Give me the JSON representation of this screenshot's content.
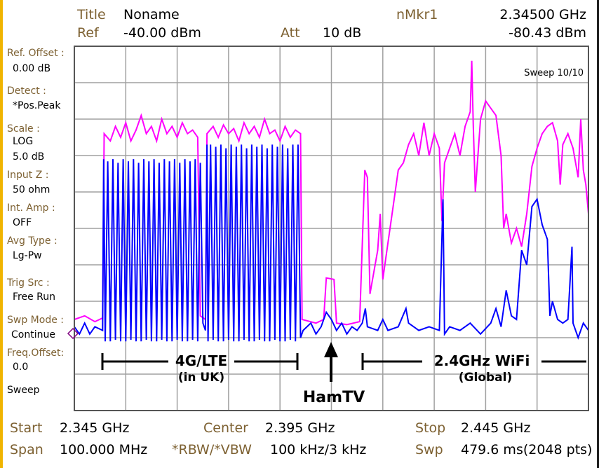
{
  "header": {
    "title_label": "Title",
    "title_value": "Noname",
    "ref_label": "Ref",
    "ref_value": "-40.00 dBm",
    "att_label": "Att",
    "att_value": "10 dB",
    "marker_label": "nMkr1",
    "marker_freq": "2.34500 GHz",
    "marker_level": "-80.43 dBm"
  },
  "side_panel": [
    {
      "label": "Ref. Offset :",
      "value": "0.00 dB"
    },
    {
      "label": "Detect :",
      "value": "*Pos.Peak"
    },
    {
      "label": "Scale :",
      "value": "LOG",
      "value2": "5.0 dB"
    },
    {
      "label": "Input Z :",
      "value": "50 ohm"
    },
    {
      "label": "Int. Amp :",
      "value": "OFF"
    },
    {
      "label": "Avg Type :",
      "value": "Lg-Pw"
    },
    {
      "label": "Trig Src :",
      "value": "Free Run"
    },
    {
      "label": "Swp Mode :",
      "value": "Continue"
    },
    {
      "label": "Freq.Offset:",
      "value": "0.0"
    },
    {
      "label": "Sweep"
    }
  ],
  "sweep_status": "Sweep 10/10",
  "footer": {
    "start_label": "Start",
    "start_value": "2.345 GHz",
    "center_label": "Center",
    "center_value": "2.395 GHz",
    "stop_label": "Stop",
    "stop_value": "2.445 GHz",
    "span_label": "Span",
    "span_value": "100.000 MHz",
    "rbw_label": "*RBW/*VBW",
    "rbw_value": "100 kHz/3 kHz",
    "swp_label": "Swp",
    "swp_value": "479.6 ms(2048 pts)"
  },
  "annotations": {
    "lte_line1": "4G/LTE",
    "lte_line2": "(in UK)",
    "hamtv": "HamTV",
    "wifi_line1": "2.4GHz WiFi",
    "wifi_line2": "(Global)"
  },
  "colors": {
    "label": "#7d6132",
    "max_hold_trace": "#ff00ff",
    "live_trace": "#0000ff",
    "grid": "#a0a0a0",
    "marker": "#800080"
  },
  "chart_data": {
    "type": "line",
    "xlim": [
      2.345,
      2.445
    ],
    "x_unit": "GHz",
    "ylim": [
      -90,
      -40
    ],
    "y_unit": "dBm",
    "scale_per_div_db": 5,
    "grid": true,
    "series": [
      {
        "color": "#ff00ff",
        "points": [
          [
            2.345,
            -77.5
          ],
          [
            2.347,
            -77
          ],
          [
            2.349,
            -77.8
          ],
          [
            2.3505,
            -77.3
          ],
          [
            2.3508,
            -52
          ],
          [
            2.352,
            -53
          ],
          [
            2.353,
            -51
          ],
          [
            2.354,
            -52.5
          ],
          [
            2.355,
            -50.5
          ],
          [
            2.356,
            -53
          ],
          [
            2.357,
            -51.5
          ],
          [
            2.358,
            -49.5
          ],
          [
            2.359,
            -52
          ],
          [
            2.36,
            -51
          ],
          [
            2.361,
            -53
          ],
          [
            2.362,
            -50
          ],
          [
            2.363,
            -52
          ],
          [
            2.364,
            -51
          ],
          [
            2.365,
            -52.5
          ],
          [
            2.366,
            -50.5
          ],
          [
            2.367,
            -52
          ],
          [
            2.368,
            -51.5
          ],
          [
            2.369,
            -52.5
          ],
          [
            2.3695,
            -77
          ],
          [
            2.3705,
            -77.5
          ],
          [
            2.3708,
            -52
          ],
          [
            2.372,
            -51
          ],
          [
            2.373,
            -52.5
          ],
          [
            2.374,
            -50.8
          ],
          [
            2.375,
            -52
          ],
          [
            2.376,
            -51.3
          ],
          [
            2.377,
            -53
          ],
          [
            2.378,
            -50.5
          ],
          [
            2.379,
            -52
          ],
          [
            2.38,
            -51
          ],
          [
            2.381,
            -52.5
          ],
          [
            2.382,
            -50
          ],
          [
            2.383,
            -52
          ],
          [
            2.384,
            -51.5
          ],
          [
            2.385,
            -53
          ],
          [
            2.386,
            -51
          ],
          [
            2.387,
            -52.5
          ],
          [
            2.388,
            -51.5
          ],
          [
            2.389,
            -52
          ],
          [
            2.3893,
            -77.5
          ],
          [
            2.392,
            -78
          ],
          [
            2.3935,
            -77.5
          ],
          [
            2.394,
            -71.8
          ],
          [
            2.3955,
            -72
          ],
          [
            2.396,
            -78
          ],
          [
            2.398,
            -78.2
          ],
          [
            2.4005,
            -77.8
          ],
          [
            2.4015,
            -57
          ],
          [
            2.402,
            -58
          ],
          [
            2.4025,
            -74
          ],
          [
            2.404,
            -68
          ],
          [
            2.4045,
            -63
          ],
          [
            2.405,
            -72
          ],
          [
            2.406,
            -67
          ],
          [
            2.407,
            -62
          ],
          [
            2.408,
            -57
          ],
          [
            2.409,
            -56
          ],
          [
            2.41,
            -53.5
          ],
          [
            2.411,
            -52
          ],
          [
            2.412,
            -55
          ],
          [
            2.413,
            -50.5
          ],
          [
            2.414,
            -55
          ],
          [
            2.415,
            -52
          ],
          [
            2.416,
            -54
          ],
          [
            2.4165,
            -64
          ],
          [
            2.417,
            -56
          ],
          [
            2.418,
            -54
          ],
          [
            2.419,
            -52
          ],
          [
            2.42,
            -55
          ],
          [
            2.421,
            -51
          ],
          [
            2.422,
            -49
          ],
          [
            2.4223,
            -42
          ],
          [
            2.4226,
            -51
          ],
          [
            2.423,
            -60
          ],
          [
            2.424,
            -50
          ],
          [
            2.425,
            -47.5
          ],
          [
            2.426,
            -48.5
          ],
          [
            2.427,
            -49.5
          ],
          [
            2.428,
            -55
          ],
          [
            2.4285,
            -65
          ],
          [
            2.429,
            -63
          ],
          [
            2.43,
            -67
          ],
          [
            2.431,
            -65
          ],
          [
            2.432,
            -67.5
          ],
          [
            2.433,
            -63
          ],
          [
            2.434,
            -56.5
          ],
          [
            2.435,
            -54
          ],
          [
            2.436,
            -52
          ],
          [
            2.437,
            -51
          ],
          [
            2.438,
            -50.5
          ],
          [
            2.439,
            -53
          ],
          [
            2.4395,
            -59
          ],
          [
            2.44,
            -53.5
          ],
          [
            2.441,
            -52
          ],
          [
            2.442,
            -54
          ],
          [
            2.443,
            -58
          ],
          [
            2.4435,
            -50
          ],
          [
            2.444,
            -57
          ],
          [
            2.4445,
            -59
          ],
          [
            2.445,
            -63
          ]
        ]
      },
      {
        "color": "#0000ff",
        "points": [
          [
            2.345,
            -78.5
          ],
          [
            2.346,
            -79.5
          ],
          [
            2.347,
            -78
          ],
          [
            2.348,
            -79.5
          ],
          [
            2.349,
            -78.5
          ],
          [
            2.3505,
            -79
          ],
          [
            2.3507,
            -55.5
          ],
          [
            2.351,
            -80.5
          ],
          [
            2.3515,
            -55.8
          ],
          [
            2.352,
            -80.5
          ],
          [
            2.3525,
            -55.5
          ],
          [
            2.353,
            -80.3
          ],
          [
            2.3535,
            -56
          ],
          [
            2.354,
            -80.5
          ],
          [
            2.3545,
            -55.5
          ],
          [
            2.355,
            -80.5
          ],
          [
            2.3555,
            -55.8
          ],
          [
            2.356,
            -80.3
          ],
          [
            2.3565,
            -55.5
          ],
          [
            2.357,
            -80.5
          ],
          [
            2.3575,
            -56
          ],
          [
            2.358,
            -80.5
          ],
          [
            2.3585,
            -55.5
          ],
          [
            2.359,
            -80.3
          ],
          [
            2.3595,
            -55.8
          ],
          [
            2.36,
            -80.5
          ],
          [
            2.3605,
            -55.5
          ],
          [
            2.361,
            -80.5
          ],
          [
            2.3615,
            -56
          ],
          [
            2.362,
            -80.3
          ],
          [
            2.3625,
            -55.5
          ],
          [
            2.363,
            -80.5
          ],
          [
            2.3635,
            -55.8
          ],
          [
            2.364,
            -80.5
          ],
          [
            2.3645,
            -55.5
          ],
          [
            2.365,
            -80.3
          ],
          [
            2.3655,
            -56
          ],
          [
            2.366,
            -80.5
          ],
          [
            2.3665,
            -55.5
          ],
          [
            2.367,
            -80.5
          ],
          [
            2.3675,
            -55.8
          ],
          [
            2.368,
            -80.3
          ],
          [
            2.3685,
            -55.5
          ],
          [
            2.369,
            -80.5
          ],
          [
            2.3695,
            -56
          ],
          [
            2.37,
            -78
          ],
          [
            2.3705,
            -79
          ],
          [
            2.3708,
            -53.5
          ],
          [
            2.371,
            -80.5
          ],
          [
            2.3715,
            -53.5
          ],
          [
            2.372,
            -80.3
          ],
          [
            2.3725,
            -53.8
          ],
          [
            2.373,
            -80.5
          ],
          [
            2.3735,
            -53.5
          ],
          [
            2.374,
            -80.5
          ],
          [
            2.3745,
            -54
          ],
          [
            2.375,
            -80.3
          ],
          [
            2.3755,
            -53.5
          ],
          [
            2.376,
            -80.5
          ],
          [
            2.3765,
            -53.8
          ],
          [
            2.377,
            -80.5
          ],
          [
            2.3775,
            -53.5
          ],
          [
            2.378,
            -80.3
          ],
          [
            2.3785,
            -54
          ],
          [
            2.379,
            -80.5
          ],
          [
            2.3795,
            -53.5
          ],
          [
            2.38,
            -80.5
          ],
          [
            2.3805,
            -53.8
          ],
          [
            2.381,
            -80.3
          ],
          [
            2.3815,
            -53.5
          ],
          [
            2.382,
            -80.5
          ],
          [
            2.3825,
            -54
          ],
          [
            2.383,
            -80.5
          ],
          [
            2.3835,
            -53.5
          ],
          [
            2.384,
            -80.3
          ],
          [
            2.3845,
            -53.8
          ],
          [
            2.385,
            -80.5
          ],
          [
            2.3855,
            -53.5
          ],
          [
            2.386,
            -80.5
          ],
          [
            2.3865,
            -54
          ],
          [
            2.387,
            -80.3
          ],
          [
            2.3875,
            -53.5
          ],
          [
            2.388,
            -80.5
          ],
          [
            2.3885,
            -53.5
          ],
          [
            2.389,
            -80
          ],
          [
            2.3895,
            -79
          ],
          [
            2.391,
            -78
          ],
          [
            2.392,
            -79.5
          ],
          [
            2.393,
            -78.5
          ],
          [
            2.394,
            -76.5
          ],
          [
            2.395,
            -77.5
          ],
          [
            2.396,
            -79
          ],
          [
            2.397,
            -78
          ],
          [
            2.398,
            -79.5
          ],
          [
            2.399,
            -78.5
          ],
          [
            2.4,
            -79
          ],
          [
            2.401,
            -78
          ],
          [
            2.4016,
            -76
          ],
          [
            2.402,
            -78.5
          ],
          [
            2.404,
            -79
          ],
          [
            2.405,
            -77.5
          ],
          [
            2.406,
            -79
          ],
          [
            2.408,
            -78.5
          ],
          [
            2.4095,
            -76
          ],
          [
            2.41,
            -78
          ],
          [
            2.412,
            -79
          ],
          [
            2.414,
            -78.5
          ],
          [
            2.416,
            -79
          ],
          [
            2.4167,
            -61
          ],
          [
            2.417,
            -79.5
          ],
          [
            2.418,
            -78.5
          ],
          [
            2.42,
            -79
          ],
          [
            2.422,
            -78
          ],
          [
            2.424,
            -79.5
          ],
          [
            2.426,
            -78
          ],
          [
            2.427,
            -76
          ],
          [
            2.428,
            -78.5
          ],
          [
            2.429,
            -73.5
          ],
          [
            2.43,
            -77
          ],
          [
            2.431,
            -77.5
          ],
          [
            2.432,
            -68
          ],
          [
            2.433,
            -70
          ],
          [
            2.434,
            -62
          ],
          [
            2.435,
            -61
          ],
          [
            2.436,
            -64.5
          ],
          [
            2.437,
            -66.5
          ],
          [
            2.4375,
            -77
          ],
          [
            2.438,
            -75
          ],
          [
            2.439,
            -77.5
          ],
          [
            2.44,
            -78
          ],
          [
            2.441,
            -77.5
          ],
          [
            2.4418,
            -67.5
          ],
          [
            2.442,
            -78
          ],
          [
            2.443,
            -80
          ],
          [
            2.444,
            -78
          ],
          [
            2.445,
            -79
          ]
        ]
      }
    ]
  }
}
